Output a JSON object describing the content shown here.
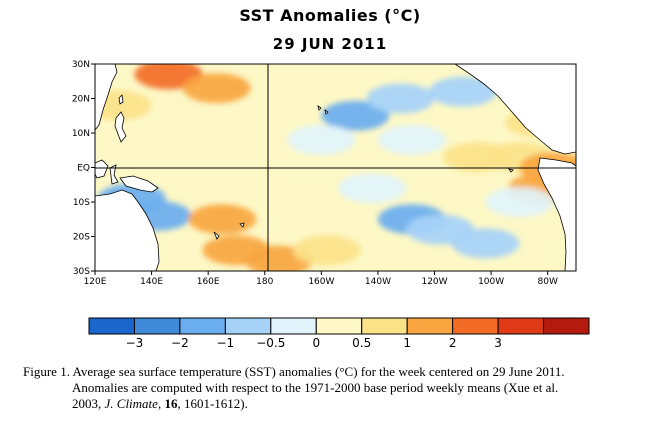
{
  "title": "SST Anomalies (°C)",
  "date": "29 JUN 2011",
  "map": {
    "lon_labels": [
      "120E",
      "140E",
      "160E",
      "180",
      "160W",
      "140W",
      "120W",
      "100W",
      "80W"
    ],
    "lat_labels": [
      "30N",
      "20N",
      "10N",
      "EQ",
      "10S",
      "20S",
      "30S"
    ],
    "lon_range": [
      120,
      290
    ],
    "lat_range": [
      -30,
      30
    ],
    "reference_lines": [
      "EQ",
      "180"
    ],
    "land_color": "#ffffff",
    "coastline_color": "#000000"
  },
  "colorbar": {
    "bounds": [
      -4,
      -3,
      -2,
      -1,
      -0.5,
      0,
      0.5,
      1,
      2,
      3,
      4
    ],
    "colors": [
      "#1a66cc",
      "#3f8ad9",
      "#6aaef0",
      "#a6d2f8",
      "#e1f4fb",
      "#fdf8c6",
      "#fce38a",
      "#f9a640",
      "#f36c26",
      "#df3a18",
      "#b41a0d"
    ],
    "labels": [
      "−3",
      "−2",
      "−1",
      "−0.5",
      "0",
      "0.5",
      "1",
      "2",
      "3"
    ],
    "label_values": [
      -3,
      -2,
      -1,
      -0.5,
      0,
      0.5,
      1,
      2,
      3
    ]
  },
  "caption": {
    "line1": "Figure 1. Average sea surface temperature (SST) anomalies (°C) for the week centered on 29 June 2011.",
    "line2": "Anomalies are computed with respect to the 1971-2000 base period weekly means (Xue et al.",
    "line3_pre": "2003, ",
    "journal": "J. Climate",
    "comma1": ", ",
    "volume": "16",
    "pages": ", 1601-1612)."
  },
  "anomaly_regions": [
    {
      "lon": 146,
      "lat": 27,
      "value": 2.4
    },
    {
      "lon": 163,
      "lat": 23,
      "value": 1.6
    },
    {
      "lon": 128,
      "lat": 18,
      "value": 0.7
    },
    {
      "lon": 212,
      "lat": 15,
      "value": -1.2
    },
    {
      "lon": 228,
      "lat": 20,
      "value": -1.0
    },
    {
      "lon": 250,
      "lat": 22,
      "value": -0.8
    },
    {
      "lon": 200,
      "lat": 8,
      "value": -0.4
    },
    {
      "lon": 232,
      "lat": 8,
      "value": -0.5
    },
    {
      "lon": 198,
      "lat": -2,
      "value": 0.1
    },
    {
      "lon": 255,
      "lat": 3,
      "value": 0.5
    },
    {
      "lon": 270,
      "lat": 3,
      "value": 0.8
    },
    {
      "lon": 277,
      "lat": 13,
      "value": 0.7
    },
    {
      "lon": 282,
      "lat": 0,
      "value": 1.6
    },
    {
      "lon": 278,
      "lat": -6,
      "value": 1.3
    },
    {
      "lon": 133,
      "lat": -9,
      "value": -1.8
    },
    {
      "lon": 142,
      "lat": -14,
      "value": -1.4
    },
    {
      "lon": 170,
      "lat": -24,
      "value": 1.9
    },
    {
      "lon": 165,
      "lat": -15,
      "value": 1.0
    },
    {
      "lon": 185,
      "lat": -27,
      "value": 1.1
    },
    {
      "lon": 202,
      "lat": -24,
      "value": 0.7
    },
    {
      "lon": 232,
      "lat": -15,
      "value": -1.2
    },
    {
      "lon": 242,
      "lat": -18,
      "value": -1.0
    },
    {
      "lon": 258,
      "lat": -22,
      "value": -0.7
    },
    {
      "lon": 270,
      "lat": -10,
      "value": -0.5
    },
    {
      "lon": 218,
      "lat": -6,
      "value": -0.3
    },
    {
      "lon": 287,
      "lat": -25,
      "value": 0.4
    }
  ]
}
